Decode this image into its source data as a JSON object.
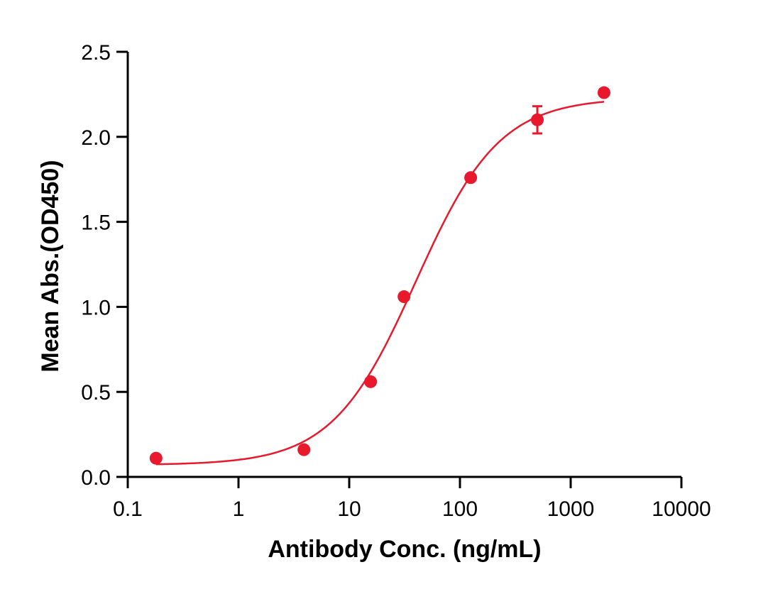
{
  "chart_data": {
    "type": "scatter",
    "title": "",
    "xlabel": "Antibody Conc. (ng/mL)",
    "ylabel": "Mean Abs.(OD450)",
    "xscale": "log",
    "xlim": [
      0.1,
      10000
    ],
    "ylim": [
      0.0,
      2.5
    ],
    "x_ticks": [
      "0.1",
      "1",
      "10",
      "100",
      "1000",
      "10000"
    ],
    "y_ticks": [
      "0.0",
      "0.5",
      "1.0",
      "1.5",
      "2.0",
      "2.5"
    ],
    "grid": false,
    "legend": null,
    "series": [
      {
        "name": "Mean Abs.",
        "color": "#e8192c",
        "fit": "4PL sigmoidal",
        "x": [
          0.18,
          3.9,
          15.6,
          31.25,
          125,
          500,
          2000
        ],
        "y": [
          0.11,
          0.16,
          0.56,
          1.06,
          1.76,
          2.1,
          2.26
        ],
        "error": [
          0,
          0,
          0,
          0,
          0,
          0.08,
          0
        ],
        "fit_params": {
          "bottom": 0.07,
          "top": 2.23,
          "ec50": 40,
          "hill": 1.15
        }
      }
    ]
  }
}
